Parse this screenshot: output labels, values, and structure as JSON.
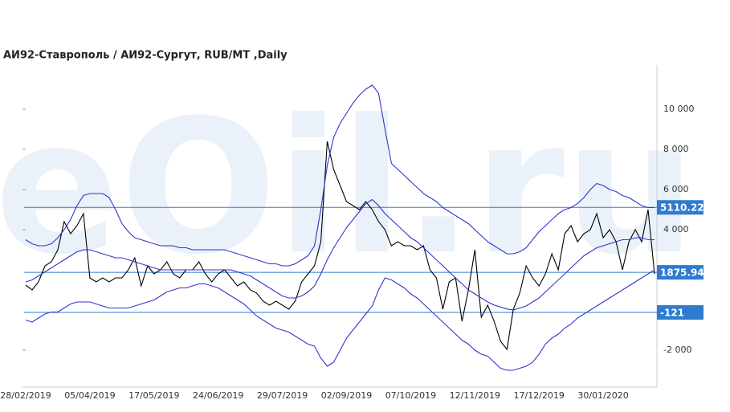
{
  "chart_data": {
    "type": "line",
    "title": "АИ92-Ставрополь / АИ92-Сургут,  RUB/MT ,Daily",
    "watermark": "eOil.ru",
    "categories": [
      "28/02/2019",
      null,
      null,
      null,
      null,
      null,
      null,
      null,
      null,
      null,
      "05/04/2019",
      null,
      null,
      null,
      null,
      null,
      null,
      null,
      null,
      null,
      "17/05/2019",
      null,
      null,
      null,
      null,
      null,
      null,
      null,
      null,
      null,
      "24/06/2019",
      null,
      null,
      null,
      null,
      null,
      null,
      null,
      null,
      null,
      "29/07/2019",
      null,
      null,
      null,
      null,
      null,
      null,
      null,
      null,
      null,
      "02/09/2019",
      null,
      null,
      null,
      null,
      null,
      null,
      null,
      null,
      null,
      "07/10/2019",
      null,
      null,
      null,
      null,
      null,
      null,
      null,
      null,
      null,
      "12/11/2019",
      null,
      null,
      null,
      null,
      null,
      null,
      null,
      null,
      null,
      "17/12/2019",
      null,
      null,
      null,
      null,
      null,
      null,
      null,
      null,
      null,
      "30/01/2020",
      null,
      null,
      null,
      null,
      null,
      null,
      null,
      null
    ],
    "series": [
      {
        "color": "#000000",
        "values": [
          1240,
          1000,
          1400,
          2200,
          2400,
          3000,
          4400,
          3800,
          4200,
          4800,
          1600,
          1400,
          1600,
          1400,
          1600,
          1600,
          2000,
          2600,
          1200,
          2200,
          1800,
          2000,
          2400,
          1800,
          1600,
          2000,
          2000,
          2400,
          1800,
          1400,
          1800,
          2000,
          1600,
          1200,
          1400,
          1000,
          840,
          440,
          240,
          440,
          240,
          40,
          440,
          1400,
          1800,
          2200,
          3400,
          8400,
          7000,
          6200,
          5400,
          5200,
          5000,
          5400,
          5000,
          4400,
          4000,
          3200,
          3400,
          3200,
          3200,
          3000,
          3200,
          2000,
          1600,
          40,
          1400,
          1600,
          -560,
          1000,
          3000,
          -360,
          240,
          -560,
          -1560,
          -1960,
          40,
          840,
          2200,
          1600,
          1200,
          1800,
          2800,
          2000,
          3800,
          4200,
          3400,
          3800,
          4000,
          4800,
          3600,
          4000,
          3400,
          2000,
          3400,
          4000,
          3400,
          5000,
          1800
        ]
      },
      {
        "color": "#3333cc",
        "values": [
          3500,
          3300,
          3200,
          3200,
          3300,
          3600,
          4000,
          4500,
          5200,
          5700,
          5800,
          5800,
          5800,
          5600,
          5000,
          4300,
          3900,
          3600,
          3500,
          3400,
          3300,
          3200,
          3200,
          3200,
          3100,
          3100,
          3000,
          3000,
          3000,
          3000,
          3000,
          3000,
          2900,
          2800,
          2700,
          2600,
          2500,
          2400,
          2300,
          2300,
          2200,
          2200,
          2300,
          2500,
          2700,
          3200,
          5000,
          7200,
          8600,
          9300,
          9800,
          10300,
          10700,
          11000,
          11200,
          10800,
          9000,
          7300,
          7000,
          6700,
          6400,
          6100,
          5800,
          5600,
          5400,
          5100,
          4900,
          4700,
          4500,
          4300,
          4000,
          3700,
          3400,
          3200,
          3000,
          2800,
          2800,
          2900,
          3100,
          3500,
          3900,
          4200,
          4500,
          4800,
          5000,
          5100,
          5300,
          5600,
          6000,
          6300,
          6200,
          6000,
          5900,
          5700,
          5600,
          5400,
          5200,
          5100,
          5100
        ]
      },
      {
        "color": "#3333cc",
        "values": [
          1400,
          1500,
          1700,
          1900,
          2100,
          2300,
          2500,
          2700,
          2900,
          3000,
          3000,
          2900,
          2800,
          2700,
          2600,
          2600,
          2500,
          2400,
          2300,
          2200,
          2100,
          2000,
          2000,
          2000,
          2000,
          2000,
          2000,
          2000,
          2000,
          2000,
          2000,
          2000,
          2000,
          1900,
          1800,
          1700,
          1500,
          1300,
          1100,
          900,
          700,
          600,
          600,
          700,
          900,
          1200,
          1800,
          2500,
          3100,
          3600,
          4100,
          4500,
          4900,
          5300,
          5500,
          5200,
          4800,
          4500,
          4200,
          3900,
          3600,
          3400,
          3100,
          2800,
          2500,
          2200,
          1900,
          1600,
          1300,
          1000,
          800,
          600,
          400,
          250,
          150,
          50,
          0,
          100,
          200,
          400,
          600,
          900,
          1200,
          1500,
          1800,
          2100,
          2400,
          2700,
          2900,
          3100,
          3200,
          3300,
          3400,
          3500,
          3500,
          3600,
          3600,
          3500,
          3500
        ]
      },
      {
        "color": "#3333cc",
        "values": [
          -500,
          -600,
          -400,
          -200,
          -100,
          -100,
          100,
          300,
          400,
          400,
          400,
          300,
          200,
          100,
          100,
          100,
          100,
          200,
          300,
          400,
          500,
          700,
          900,
          1000,
          1100,
          1100,
          1200,
          1300,
          1300,
          1200,
          1100,
          900,
          700,
          500,
          300,
          0,
          -300,
          -500,
          -700,
          -900,
          -1000,
          -1100,
          -1300,
          -1500,
          -1700,
          -1800,
          -2400,
          -2800,
          -2600,
          -2000,
          -1400,
          -1000,
          -600,
          -200,
          200,
          1000,
          1600,
          1500,
          1300,
          1100,
          800,
          600,
          300,
          0,
          -300,
          -600,
          -900,
          -1200,
          -1500,
          -1700,
          -2000,
          -2200,
          -2300,
          -2600,
          -2900,
          -3000,
          -3000,
          -2900,
          -2800,
          -2600,
          -2200,
          -1700,
          -1400,
          -1200,
          -900,
          -700,
          -400,
          -200,
          0,
          200,
          400,
          600,
          800,
          1000,
          1200,
          1400,
          1600,
          1800,
          2000
        ]
      }
    ],
    "hlines": [
      5110.22,
      1875.94,
      -121
    ],
    "hline_color": "#2e7bcf",
    "ylim": [
      -3800,
      12200
    ],
    "yticks": [
      {
        "value": 10000,
        "label": "10 000"
      },
      {
        "value": 8000,
        "label": "8 000"
      },
      {
        "value": 6000,
        "label": "6 000"
      },
      {
        "value": 4000,
        "label": "4 000"
      },
      {
        "value": -2000,
        "label": "-2 000"
      }
    ]
  }
}
